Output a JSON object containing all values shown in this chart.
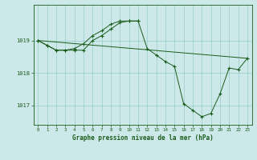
{
  "background_color": "#cce8e8",
  "plot_bg_color": "#cce8e8",
  "line_color": "#1a5c1a",
  "marker_color": "#1a5c1a",
  "grid_color": "#99cccc",
  "title": "Graphe pression niveau de la mer (hPa)",
  "xlim": [
    -0.5,
    23.5
  ],
  "ylim": [
    1016.4,
    1020.1
  ],
  "yticks": [
    1017,
    1018,
    1019
  ],
  "xticks": [
    0,
    1,
    2,
    3,
    4,
    5,
    6,
    7,
    8,
    9,
    10,
    11,
    12,
    13,
    14,
    15,
    16,
    17,
    18,
    19,
    20,
    21,
    22,
    23
  ],
  "series": [
    {
      "x": [
        0,
        1,
        2,
        3,
        4,
        5,
        6,
        7,
        8,
        9,
        10,
        11
      ],
      "y": [
        1019.0,
        1018.85,
        1018.7,
        1018.7,
        1018.75,
        1018.9,
        1019.15,
        1019.3,
        1019.5,
        1019.6,
        1019.6,
        1019.6
      ],
      "markers": true
    },
    {
      "x": [
        0,
        23
      ],
      "y": [
        1019.0,
        1018.45
      ],
      "markers": false
    },
    {
      "x": [
        0,
        1,
        2,
        3,
        4,
        5,
        6,
        7,
        8,
        9,
        10,
        11,
        12,
        13,
        14,
        15,
        16,
        17,
        18,
        19,
        20,
        21,
        22,
        23
      ],
      "y": [
        1019.0,
        1018.85,
        1018.7,
        1018.7,
        1018.7,
        1018.7,
        1019.0,
        1019.15,
        1019.35,
        1019.55,
        1019.6,
        1019.6,
        1018.75,
        1018.55,
        1018.35,
        1018.2,
        1017.05,
        1016.85,
        1016.65,
        1016.75,
        1017.35,
        1018.15,
        1018.1,
        1018.45
      ],
      "markers": true
    }
  ]
}
